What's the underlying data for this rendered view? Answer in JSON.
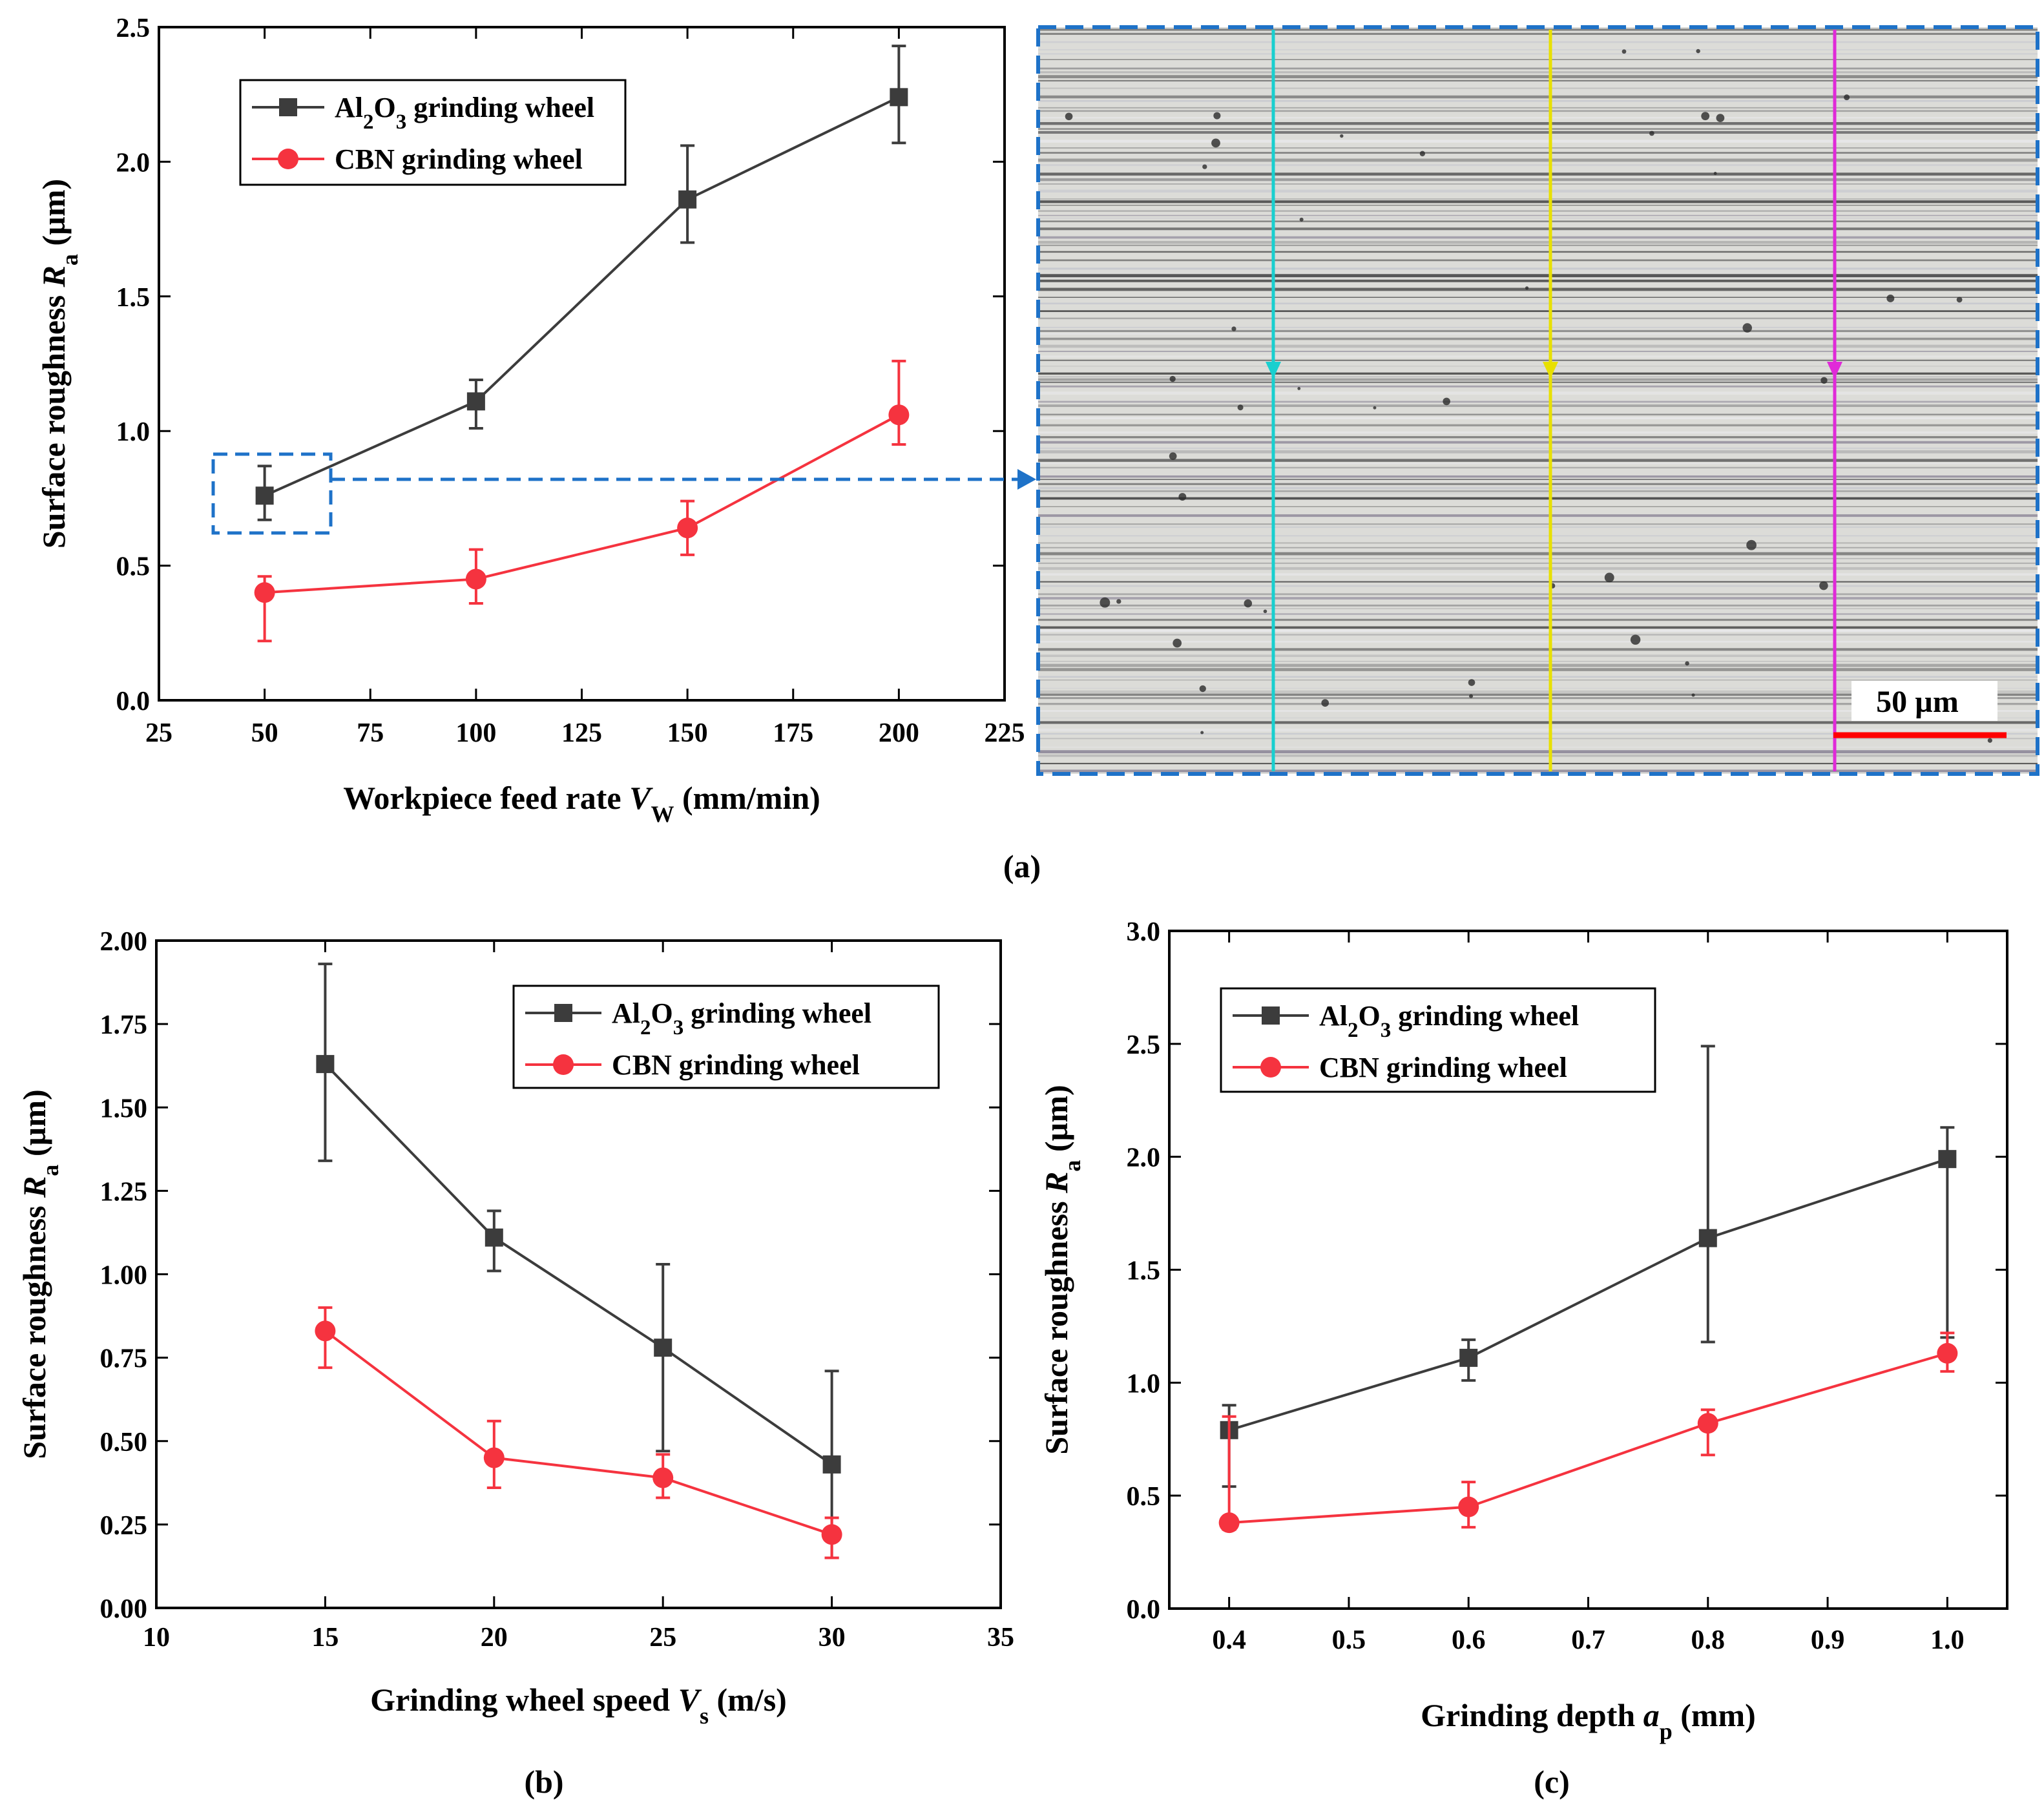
{
  "figure": {
    "panel_labels": [
      "(a)",
      "(b)",
      "(c)"
    ],
    "colors": {
      "al2o3": "#3c3c3c",
      "cbn": "#f5333f",
      "callout": "#1e72c8",
      "line_cyan": "#19cfcf",
      "line_yellow": "#e8e000",
      "line_magenta": "#e02ad8",
      "scale_bar": "#ff0000"
    }
  },
  "micrograph": {
    "scale_label": "50 µm"
  },
  "chart_data": [
    {
      "panel": "(a)",
      "type": "line",
      "xlabel_parts": [
        "Workpiece feed rate  ",
        "V",
        "W",
        " (mm/min)"
      ],
      "ylabel_parts": [
        "Surface roughness ",
        "R",
        "a",
        " (µm)"
      ],
      "xlim": [
        25,
        225
      ],
      "ylim": [
        0,
        2.5
      ],
      "xticks": [
        "25",
        "50",
        "75",
        "100",
        "125",
        "150",
        "175",
        "200",
        "225"
      ],
      "xtick_values": [
        25,
        50,
        75,
        100,
        125,
        150,
        175,
        200,
        225
      ],
      "yticks": [
        "0.0",
        "0.5",
        "1.0",
        "1.5",
        "2.0",
        "2.5"
      ],
      "ytick_values": [
        0,
        0.5,
        1.0,
        1.5,
        2.0,
        2.5
      ],
      "x": [
        50,
        100,
        150,
        200
      ],
      "legend_position": "top-left",
      "series": [
        {
          "name": "Al2O3 grinding wheel",
          "name_parts": [
            "Al",
            "2",
            "O",
            "3",
            " grinding wheel"
          ],
          "marker": "square",
          "color": "#3c3c3c",
          "values": [
            0.76,
            1.11,
            1.86,
            2.24
          ],
          "err_low": [
            0.67,
            1.01,
            1.7,
            2.07
          ],
          "err_high": [
            0.87,
            1.19,
            2.06,
            2.43
          ]
        },
        {
          "name": "CBN grinding wheel",
          "name_parts": [
            "CBN grinding wheel"
          ],
          "marker": "circle",
          "color": "#f5333f",
          "values": [
            0.4,
            0.45,
            0.64,
            1.06
          ],
          "err_low": [
            0.22,
            0.36,
            0.54,
            0.95
          ],
          "err_high": [
            0.46,
            0.56,
            0.74,
            1.26
          ]
        }
      ]
    },
    {
      "panel": "(b)",
      "type": "line",
      "xlabel_parts": [
        "Grinding wheel speed  ",
        "V",
        "s",
        " (m/s)"
      ],
      "ylabel_parts": [
        "Surface roughness ",
        "R",
        "a",
        " (µm)"
      ],
      "xlim": [
        10,
        35
      ],
      "ylim": [
        0,
        2.0
      ],
      "xticks": [
        "10",
        "15",
        "20",
        "25",
        "30",
        "35"
      ],
      "xtick_values": [
        10,
        15,
        20,
        25,
        30,
        35
      ],
      "yticks": [
        "0.00",
        "0.25",
        "0.50",
        "0.75",
        "1.00",
        "1.25",
        "1.50",
        "1.75",
        "2.00"
      ],
      "ytick_values": [
        0,
        0.25,
        0.5,
        0.75,
        1.0,
        1.25,
        1.5,
        1.75,
        2.0
      ],
      "x": [
        15,
        20,
        25,
        30
      ],
      "legend_position": "top-right",
      "series": [
        {
          "name": "Al2O3 grinding wheel",
          "name_parts": [
            "Al",
            "2",
            "O",
            "3",
            " grinding wheel"
          ],
          "marker": "square",
          "color": "#3c3c3c",
          "values": [
            1.63,
            1.11,
            0.78,
            0.43
          ],
          "err_low": [
            1.34,
            1.01,
            0.47,
            0.15
          ],
          "err_high": [
            1.93,
            1.19,
            1.03,
            0.71
          ]
        },
        {
          "name": "CBN grinding wheel",
          "name_parts": [
            "CBN grinding wheel"
          ],
          "marker": "circle",
          "color": "#f5333f",
          "values": [
            0.83,
            0.45,
            0.39,
            0.22
          ],
          "err_low": [
            0.72,
            0.36,
            0.33,
            0.15
          ],
          "err_high": [
            0.9,
            0.56,
            0.46,
            0.27
          ]
        }
      ]
    },
    {
      "panel": "(c)",
      "type": "line",
      "xlabel_parts": [
        "Grinding depth  ",
        "a",
        "p",
        " (mm)"
      ],
      "ylabel_parts": [
        "Surface roughness ",
        "R",
        "a",
        " (µm)"
      ],
      "xlim": [
        0.35,
        1.05
      ],
      "ylim": [
        0,
        3.0
      ],
      "xticks": [
        "0.4",
        "0.5",
        "0.6",
        "0.7",
        "0.8",
        "0.9",
        "1.0"
      ],
      "xtick_values": [
        0.4,
        0.5,
        0.6,
        0.7,
        0.8,
        0.9,
        1.0
      ],
      "yticks": [
        "0.0",
        "0.5",
        "1.0",
        "1.5",
        "2.0",
        "2.5",
        "3.0"
      ],
      "ytick_values": [
        0,
        0.5,
        1.0,
        1.5,
        2.0,
        2.5,
        3.0
      ],
      "x": [
        0.4,
        0.6,
        0.8,
        1.0
      ],
      "legend_position": "top-left",
      "series": [
        {
          "name": "Al2O3 grinding wheel",
          "name_parts": [
            "Al",
            "2",
            "O",
            "3",
            " grinding wheel"
          ],
          "marker": "square",
          "color": "#3c3c3c",
          "values": [
            0.79,
            1.11,
            1.64,
            1.99
          ],
          "err_low": [
            0.54,
            1.01,
            1.18,
            1.2
          ],
          "err_high": [
            0.9,
            1.19,
            2.49,
            2.13
          ]
        },
        {
          "name": "CBN grinding wheel",
          "name_parts": [
            "CBN grinding wheel"
          ],
          "marker": "circle",
          "color": "#f5333f",
          "values": [
            0.38,
            0.45,
            0.82,
            1.13
          ],
          "err_low": [
            0.35,
            0.36,
            0.68,
            1.05
          ],
          "err_high": [
            0.85,
            0.56,
            0.88,
            1.22
          ]
        }
      ]
    }
  ]
}
